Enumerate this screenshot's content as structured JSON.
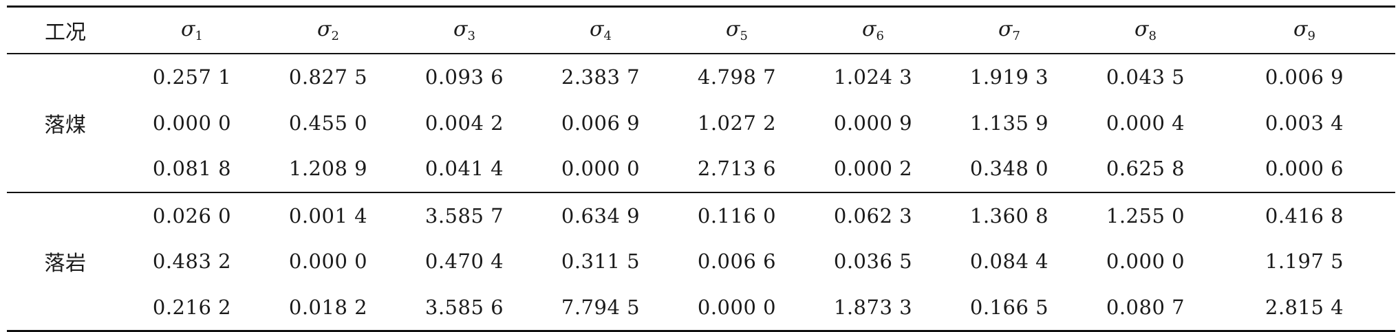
{
  "header": {
    "condition_label": "工况",
    "sigma_symbol": "σ",
    "sigma_indices": [
      "1",
      "2",
      "3",
      "4",
      "5",
      "6",
      "7",
      "8",
      "9"
    ]
  },
  "groups": [
    {
      "condition": "落煤",
      "rows": [
        [
          "0.257 1",
          "0.827 5",
          "0.093 6",
          "2.383 7",
          "4.798 7",
          "1.024 3",
          "1.919 3",
          "0.043 5",
          "0.006 9"
        ],
        [
          "0.000 0",
          "0.455 0",
          "0.004 2",
          "0.006 9",
          "1.027 2",
          "0.000 9",
          "1.135 9",
          "0.000 4",
          "0.003 4"
        ],
        [
          "0.081 8",
          "1.208 9",
          "0.041 4",
          "0.000 0",
          "2.713 6",
          "0.000 2",
          "0.348 0",
          "0.625 8",
          "0.000 6"
        ]
      ]
    },
    {
      "condition": "落岩",
      "rows": [
        [
          "0.026 0",
          "0.001 4",
          "3.585 7",
          "0.634 9",
          "0.116 0",
          "0.062 3",
          "1.360 8",
          "1.255 0",
          "0.416 8"
        ],
        [
          "0.483 2",
          "0.000 0",
          "0.470 4",
          "0.311 5",
          "0.006 6",
          "0.036 5",
          "0.084 4",
          "0.000 0",
          "1.197 5"
        ],
        [
          "0.216 2",
          "0.018 2",
          "3.585 6",
          "7.794 5",
          "0.000 0",
          "1.873 3",
          "0.166 5",
          "0.080 7",
          "2.815 4"
        ]
      ]
    }
  ]
}
